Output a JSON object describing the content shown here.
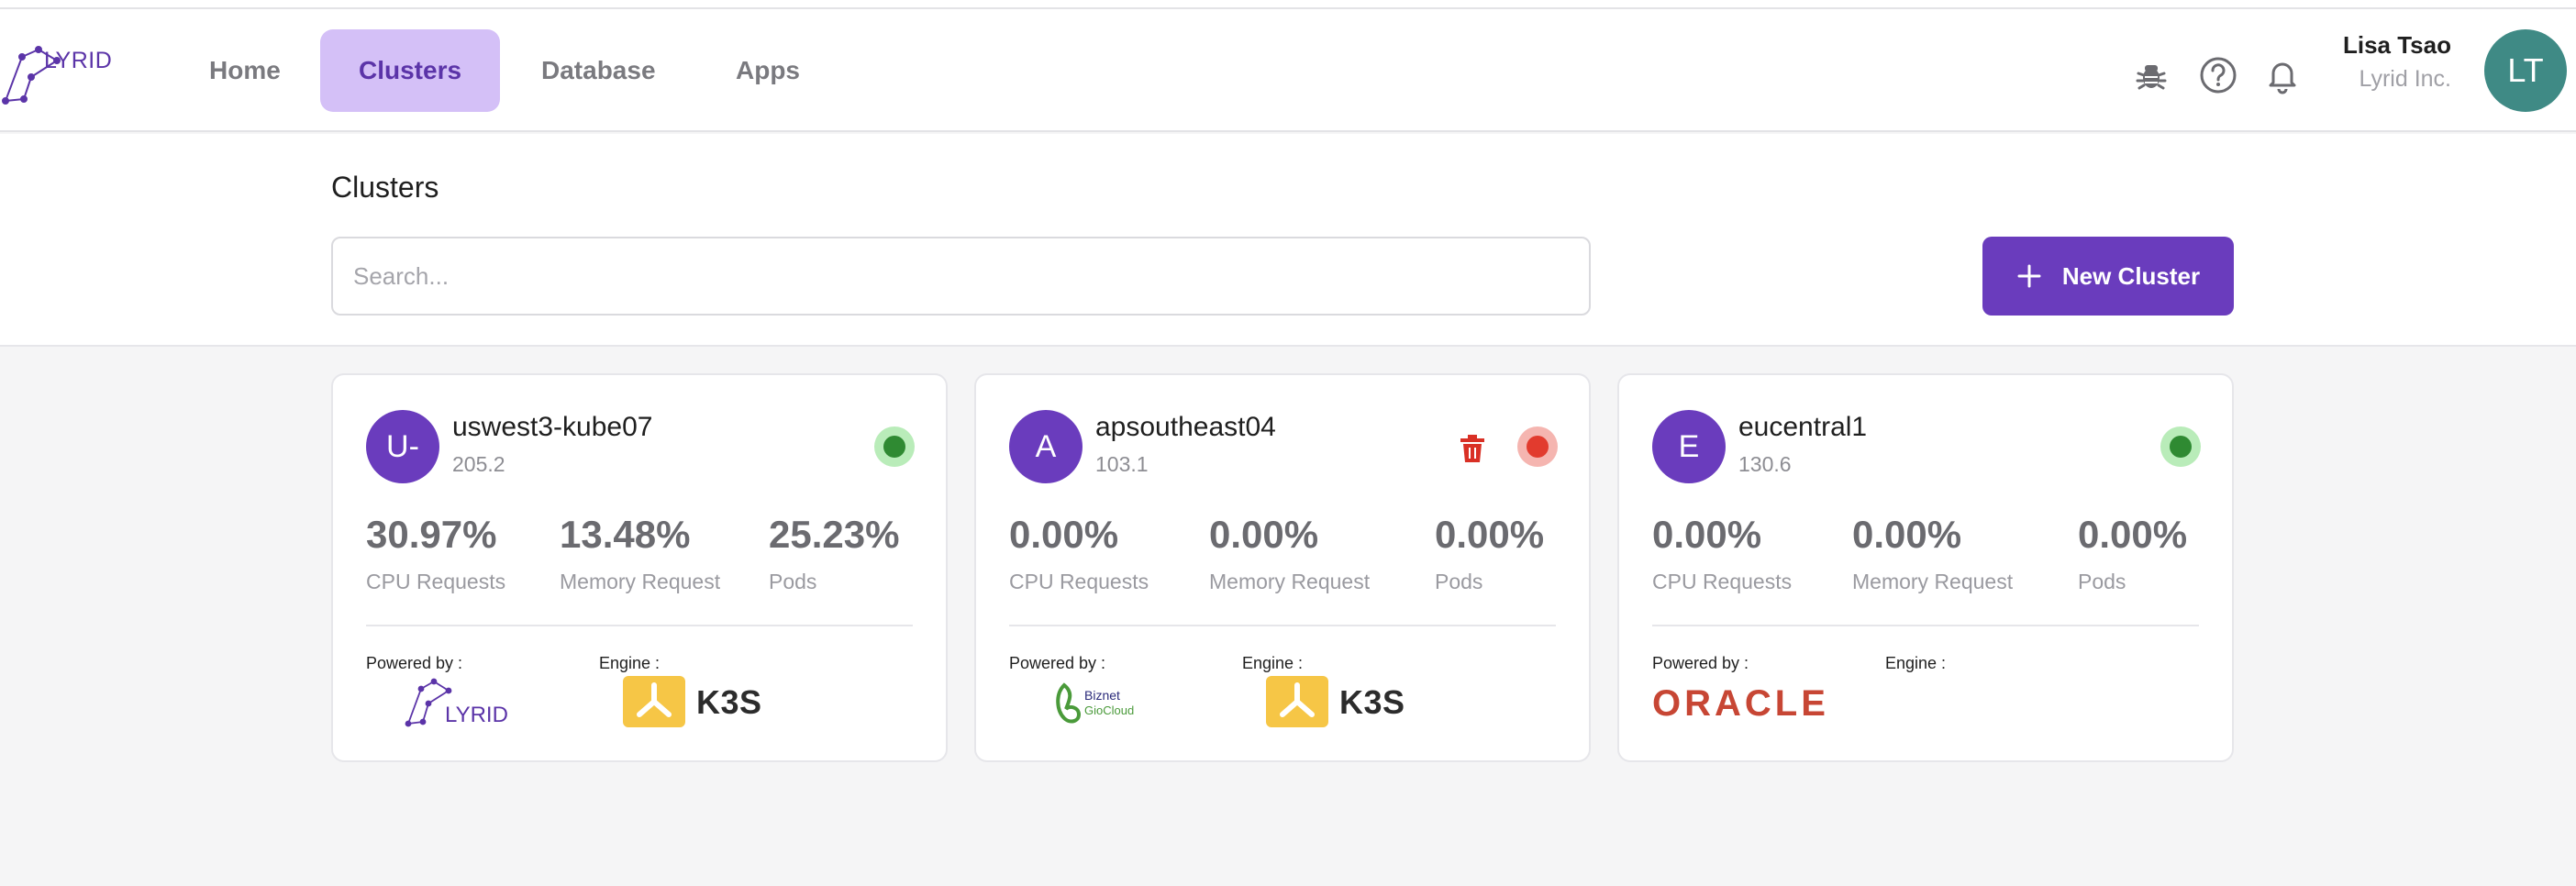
{
  "brand": {
    "logo_text": "LYRID"
  },
  "nav": {
    "items": [
      {
        "label": "Home",
        "active": false
      },
      {
        "label": "Clusters",
        "active": true
      },
      {
        "label": "Database",
        "active": false
      },
      {
        "label": "Apps",
        "active": false
      }
    ]
  },
  "header": {
    "icons": [
      "bug-icon",
      "help-icon",
      "bell-icon"
    ],
    "user_name": "Lisa Tsao",
    "user_org": "Lyrid Inc.",
    "avatar_initials": "LT",
    "avatar_color": "#3f8a85"
  },
  "page": {
    "title": "Clusters",
    "search_placeholder": "Search...",
    "search_value": "",
    "new_button_label": "New Cluster",
    "accent_color": "#6a3cbd"
  },
  "clusters": [
    {
      "initial": "U-",
      "name": "uswest3-kube07",
      "ip": "205.2",
      "status": "green",
      "deletable": false,
      "metrics": [
        {
          "value": "30.97%",
          "label": "CPU Requests"
        },
        {
          "value": "13.48%",
          "label": "Memory Request"
        },
        {
          "value": "25.23%",
          "label": "Pods"
        }
      ],
      "powered_by_label": "Powered by :",
      "powered_by": "LYRID",
      "engine_label": "Engine :",
      "engine": "K3S"
    },
    {
      "initial": "A",
      "name": "apsoutheast04",
      "ip": "103.1",
      "status": "red",
      "deletable": true,
      "metrics": [
        {
          "value": "0.00%",
          "label": "CPU Requests"
        },
        {
          "value": "0.00%",
          "label": "Memory Request"
        },
        {
          "value": "0.00%",
          "label": "Pods"
        }
      ],
      "powered_by_label": "Powered by :",
      "powered_by": "Biznet GioCloud",
      "engine_label": "Engine :",
      "engine": "K3S"
    },
    {
      "initial": "E",
      "name": "eucentral1",
      "ip": "130.6",
      "status": "green",
      "deletable": false,
      "metrics": [
        {
          "value": "0.00%",
          "label": "CPU Requests"
        },
        {
          "value": "0.00%",
          "label": "Memory Request"
        },
        {
          "value": "0.00%",
          "label": "Pods"
        }
      ],
      "powered_by_label": "Powered by :",
      "powered_by": "ORACLE",
      "engine_label": "Engine :",
      "engine": ""
    }
  ],
  "colors": {
    "status_green": "#2f8a32",
    "status_red": "#e23b2e",
    "oracle_red": "#c74634",
    "k3s_yellow": "#f6c646"
  }
}
